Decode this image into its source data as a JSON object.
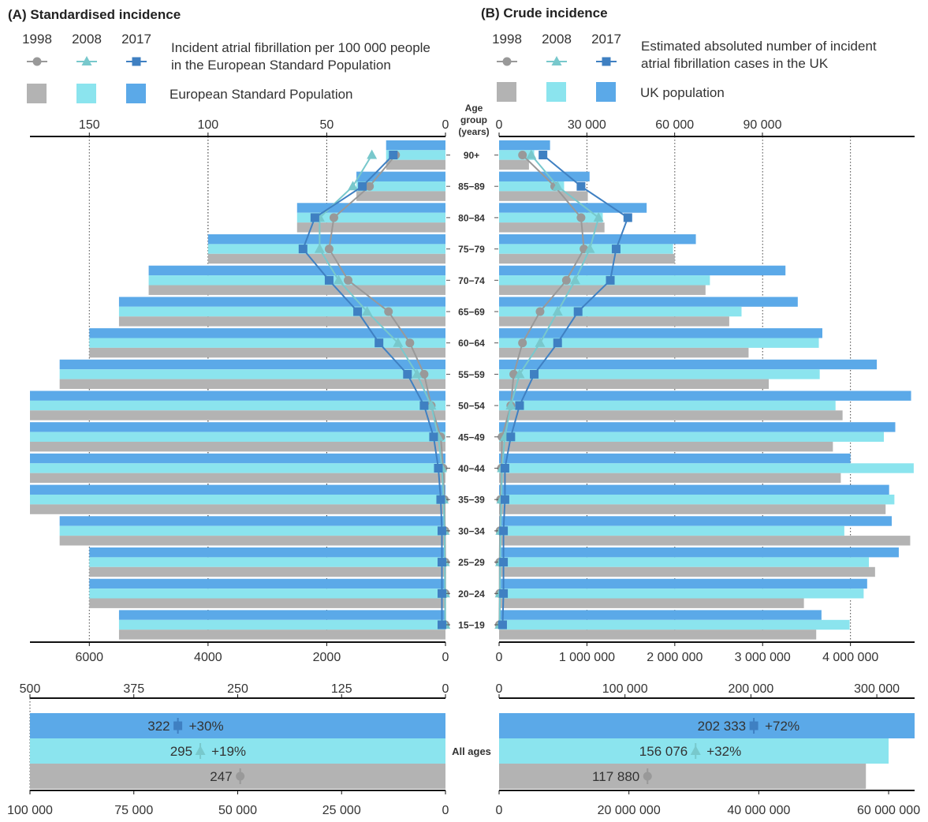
{
  "colors": {
    "y1998": "#b3b3b3",
    "y2008": "#8be4ee",
    "y2017": "#5ba9e8",
    "m1998": "#999999",
    "m2008": "#78c8cc",
    "m2017": "#3f80c2"
  },
  "panelA": {
    "title": "(A) Standardised incidence",
    "legend_years": [
      "1998",
      "2008",
      "2017"
    ],
    "legend_line_text": [
      "Incident atrial fibrillation per 100 000 people",
      "in the European Standard Population"
    ],
    "legend_bar_text": "European Standard Population"
  },
  "panelB": {
    "title": "(B) Crude incidence",
    "legend_years": [
      "1998",
      "2008",
      "2017"
    ],
    "legend_line_text": [
      "Estimated absoluted number of incident",
      "atrial fibrillation cases in the UK"
    ],
    "legend_bar_text": "UK population"
  },
  "age_header": [
    "Age",
    "group",
    "(years)"
  ],
  "all_ages_label": "All ages",
  "chart_data": [
    {
      "panel": "A",
      "type": "bar",
      "description_axes": "top axis: incidence rate per 100 000 (reversed); bottom axis: European Standard Population",
      "categories": [
        "90+",
        "85-89",
        "80-84",
        "75-79",
        "70-74",
        "65-69",
        "60-64",
        "55-59",
        "50-54",
        "45-49",
        "40-44",
        "35-39",
        "30-34",
        "25-29",
        "20-24",
        "15-19"
      ],
      "top_axis": {
        "ticks": [
          "150",
          "100",
          "50",
          "0"
        ],
        "range": [
          175,
          0
        ]
      },
      "bottom_axis": {
        "ticks": [
          "6000",
          "4000",
          "2000",
          "0"
        ],
        "range": [
          7000,
          0
        ]
      },
      "population_series": [
        {
          "name": "1998",
          "values": [
            1000,
            1500,
            2500,
            4000,
            5000,
            5500,
            6000,
            6500,
            7000,
            7000,
            7000,
            7000,
            6500,
            6000,
            6000,
            5500
          ]
        },
        {
          "name": "2008",
          "values": [
            1000,
            1500,
            2500,
            4000,
            5000,
            5500,
            6000,
            6500,
            7000,
            7000,
            7000,
            7000,
            6500,
            6000,
            6000,
            5500
          ]
        },
        {
          "name": "2017",
          "values": [
            1000,
            1500,
            2500,
            4000,
            5000,
            5500,
            6000,
            6500,
            7000,
            7000,
            7000,
            7000,
            6500,
            6000,
            6000,
            5500
          ]
        }
      ],
      "incidence_series": [
        {
          "name": "1998",
          "values": [
            21,
            32,
            47,
            49,
            41,
            24,
            15,
            9,
            6,
            2,
            1,
            0.5,
            0.2,
            0.1,
            0.1,
            0.1
          ]
        },
        {
          "name": "2008",
          "values": [
            31,
            39,
            53,
            53,
            45,
            33,
            20,
            12,
            6,
            3,
            1.5,
            0.8,
            0.4,
            0.3,
            0.2,
            0.1
          ]
        },
        {
          "name": "2017",
          "values": [
            22,
            35,
            55,
            60,
            49,
            37,
            28,
            16,
            9,
            5,
            3,
            2,
            1.5,
            1.5,
            1.5,
            1.5
          ]
        }
      ]
    },
    {
      "panel": "B",
      "type": "bar",
      "description_axes": "top axis: incident cases; bottom axis: UK population",
      "categories": [
        "90+",
        "85-89",
        "80-84",
        "75-79",
        "70-74",
        "65-69",
        "60-64",
        "55-59",
        "50-54",
        "45-49",
        "40-44",
        "35-39",
        "30-34",
        "25-29",
        "20-24",
        "15-19"
      ],
      "top_axis": {
        "ticks": [
          "0",
          "30 000",
          "60 000",
          "90 000"
        ],
        "range": [
          0,
          142000
        ]
      },
      "bottom_axis": {
        "ticks": [
          "0",
          "1 000 000",
          "2 000 000",
          "3 000 000",
          "4 000 000"
        ],
        "range": [
          0,
          4730000
        ]
      },
      "population_series": [
        {
          "name": "1998",
          "values": [
            340000,
            1010000,
            1200000,
            2000000,
            2350000,
            2620000,
            2840000,
            3070000,
            3910000,
            3800000,
            3890000,
            4400000,
            4680000,
            4280000,
            3470000,
            3610000
          ]
        },
        {
          "name": "2008",
          "values": [
            400000,
            740000,
            1180000,
            1980000,
            2400000,
            2760000,
            3640000,
            3650000,
            3830000,
            4380000,
            4720000,
            4500000,
            3930000,
            4210000,
            4150000,
            3990000
          ]
        },
        {
          "name": "2017",
          "values": [
            580000,
            1030000,
            1680000,
            2240000,
            3260000,
            3400000,
            3680000,
            4300000,
            4690000,
            4510000,
            4000000,
            4440000,
            4470000,
            4550000,
            4190000,
            3670000
          ]
        }
      ],
      "incidence_series": [
        {
          "name": "1998",
          "values": [
            8000,
            19000,
            28000,
            29000,
            23000,
            14000,
            8000,
            5000,
            4000,
            1000,
            800,
            500,
            300,
            200,
            200,
            100
          ]
        },
        {
          "name": "2008",
          "values": [
            11000,
            20000,
            34000,
            31000,
            26000,
            20000,
            14000,
            7000,
            4000,
            2000,
            1000,
            800,
            500,
            400,
            300,
            200
          ]
        },
        {
          "name": "2017",
          "values": [
            15000,
            28000,
            44000,
            40000,
            38000,
            27000,
            20000,
            12000,
            7000,
            4000,
            2000,
            2000,
            1500,
            1500,
            1500,
            1200
          ]
        }
      ]
    },
    {
      "panel": "A-all",
      "type": "bar",
      "category": "All ages",
      "top_axis": {
        "ticks": [
          "500",
          "375",
          "250",
          "125",
          "0"
        ],
        "range": [
          500,
          0
        ]
      },
      "bottom_axis": {
        "ticks": [
          "100 000",
          "75 000",
          "50 000",
          "25 000",
          "0"
        ],
        "range": [
          100000,
          0
        ]
      },
      "series": [
        {
          "name": "2017",
          "rate": 322,
          "change": "+30%",
          "population": 100000
        },
        {
          "name": "2008",
          "rate": 295,
          "change": "+19%",
          "population": 100000
        },
        {
          "name": "1998",
          "rate": 247,
          "change": "",
          "population": 100000
        }
      ],
      "labels": [
        "322",
        "+30%",
        "295",
        "+19%",
        "247"
      ]
    },
    {
      "panel": "B-all",
      "type": "bar",
      "category": "All ages",
      "top_axis": {
        "ticks": [
          "0",
          "100 000",
          "200 000",
          "300 000"
        ],
        "range": [
          0,
          330000
        ]
      },
      "bottom_axis": {
        "ticks": [
          "0",
          "20 000 000",
          "40 000 000",
          "60 000 000"
        ],
        "range": [
          0,
          64000000
        ]
      },
      "series": [
        {
          "name": "2017",
          "cases": 202333,
          "change": "+72%",
          "population": 64000000
        },
        {
          "name": "2008",
          "cases": 156076,
          "change": "+32%",
          "population": 60000000
        },
        {
          "name": "1998",
          "cases": 117880,
          "change": "",
          "population": 56500000
        }
      ],
      "labels": [
        "202 333",
        "+72%",
        "156 076",
        "+32%",
        "117 880"
      ]
    }
  ]
}
